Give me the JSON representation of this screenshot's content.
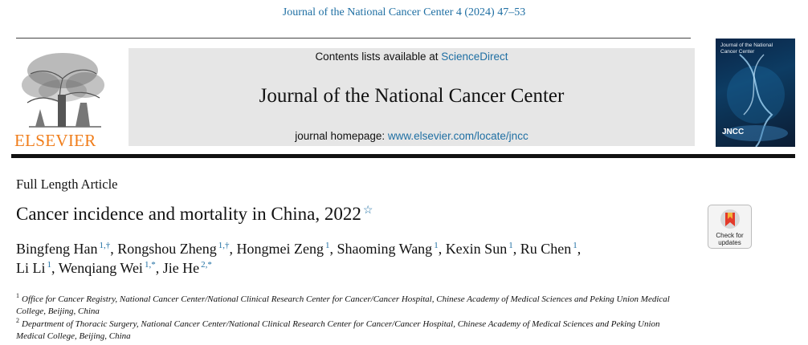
{
  "header": {
    "citation": "Journal of the National Cancer Center 4 (2024) 47–53",
    "contents_prefix": "Contents lists available at ",
    "contents_link": "ScienceDirect",
    "journal_title": "Journal of the National Cancer Center",
    "homepage_prefix": "journal homepage: ",
    "homepage_link": "www.elsevier.com/locate/jncc",
    "publisher": "ELSEVIER",
    "cover_title": "Journal of the National Cancer Center",
    "cover_abbrev": "JNCC"
  },
  "article": {
    "type": "Full Length Article",
    "title": "Cancer incidence and mortality in China, 2022",
    "title_mark": "☆",
    "authors": [
      {
        "name": "Bingfeng Han",
        "sup": "1,†"
      },
      {
        "name": "Rongshou Zheng",
        "sup": "1,†"
      },
      {
        "name": "Hongmei Zeng",
        "sup": "1"
      },
      {
        "name": "Shaoming Wang",
        "sup": "1"
      },
      {
        "name": "Kexin Sun",
        "sup": "1"
      },
      {
        "name": "Ru Chen",
        "sup": "1"
      },
      {
        "name": "Li Li",
        "sup": "1"
      },
      {
        "name": "Wenqiang Wei",
        "sup": "1,*"
      },
      {
        "name": "Jie He",
        "sup": "2,*"
      }
    ],
    "affiliations": [
      {
        "num": "1",
        "text": "Office for Cancer Registry, National Cancer Center/National Clinical Research Center for Cancer/Cancer Hospital, Chinese Academy of Medical Sciences and Peking Union Medical College, Beijing, China"
      },
      {
        "num": "2",
        "text": "Department of Thoracic Surgery, National Cancer Center/National Clinical Research Center for Cancer/Cancer Hospital, Chinese Academy of Medical Sciences and Peking Union Medical College, Beijing, China"
      }
    ]
  },
  "badge": {
    "line1": "Check for",
    "line2": "updates"
  },
  "colors": {
    "link": "#1f6fa3",
    "publisher": "#f07d1a",
    "banner": "#e6e6e6"
  }
}
